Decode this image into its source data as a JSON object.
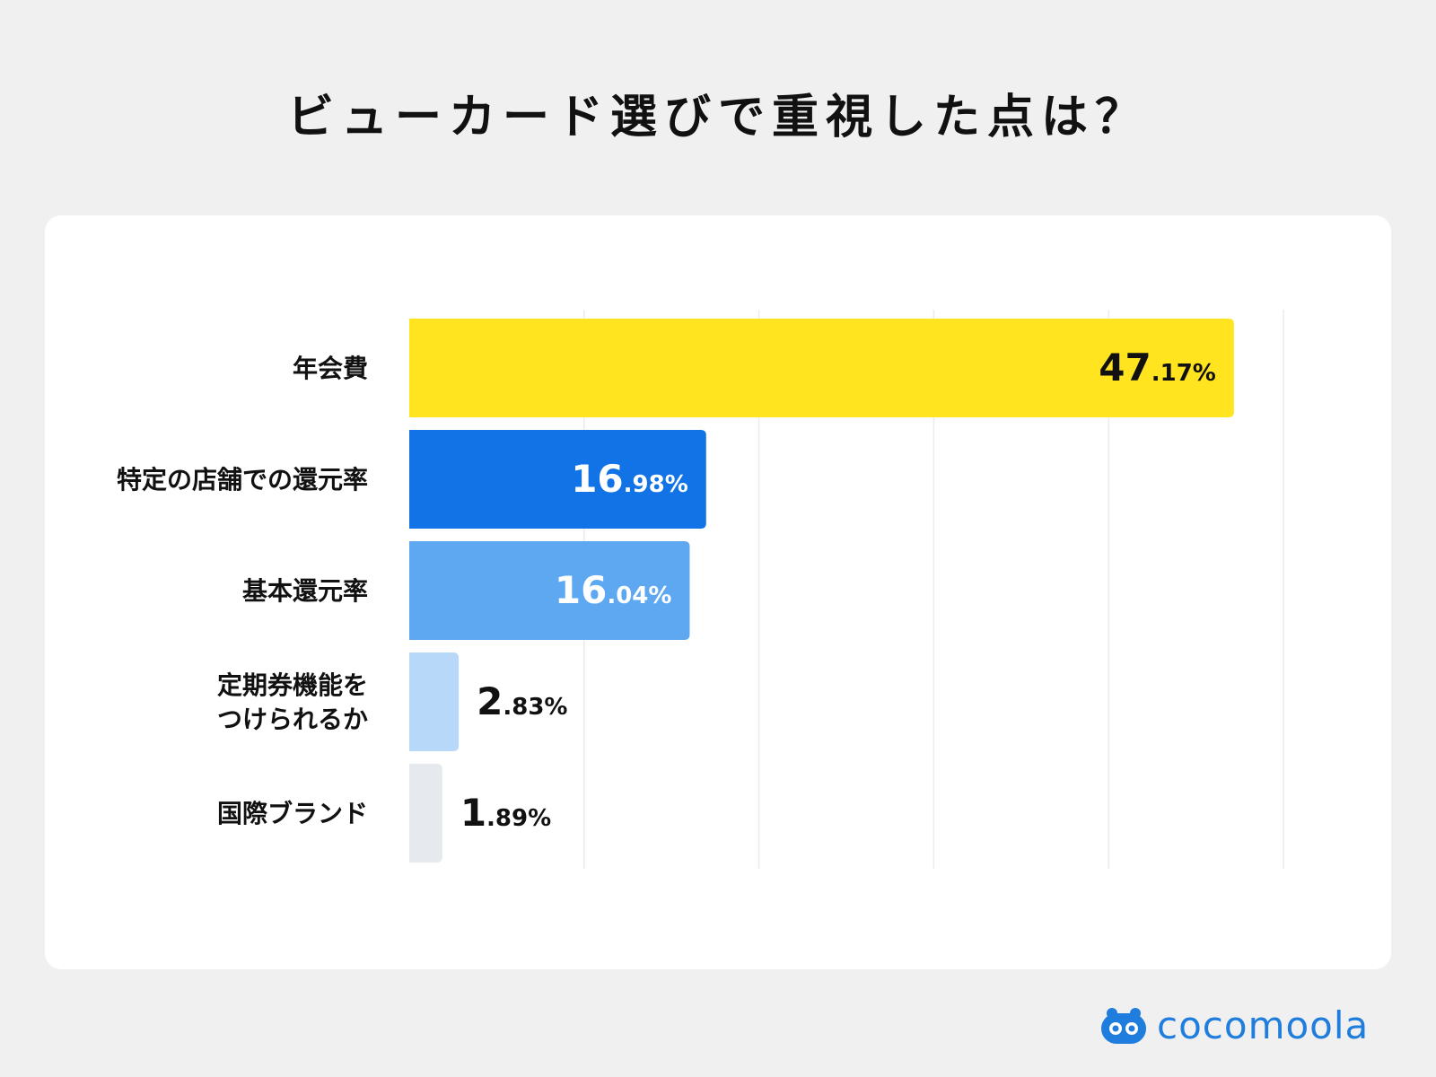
{
  "title": "ビューカード選びで重視した点は？",
  "brand": {
    "name": "cocomoola",
    "color": "#1f7ddd",
    "icon": "bear-logo-icon"
  },
  "chart_data": {
    "type": "bar",
    "orientation": "horizontal",
    "title": "ビューカード選びで重視した点は？",
    "categories": [
      [
        "年会費"
      ],
      [
        "特定の店舗での還元率"
      ],
      [
        "基本還元率"
      ],
      [
        "定期券機能を",
        "つけられるか"
      ],
      [
        "国際ブランド"
      ]
    ],
    "values": [
      47.17,
      16.98,
      16.04,
      2.83,
      1.89
    ],
    "value_labels": [
      {
        "int": "47",
        "dec": ".17%"
      },
      {
        "int": "16",
        "dec": ".98%"
      },
      {
        "int": "16",
        "dec": ".04%"
      },
      {
        "int": "2",
        "dec": ".83%"
      },
      {
        "int": "1",
        "dec": ".89%"
      }
    ],
    "colors": [
      "#ffe41f",
      "#1273e6",
      "#5ea8f2",
      "#b8d8fa",
      "#e6eaef"
    ],
    "label_colors": [
      "#111111",
      "#ffffff",
      "#ffffff",
      "#111111",
      "#111111"
    ],
    "label_inside": [
      true,
      true,
      true,
      false,
      false
    ],
    "xlim": [
      0,
      50
    ],
    "grid": true,
    "xlabel": "",
    "ylabel": ""
  }
}
